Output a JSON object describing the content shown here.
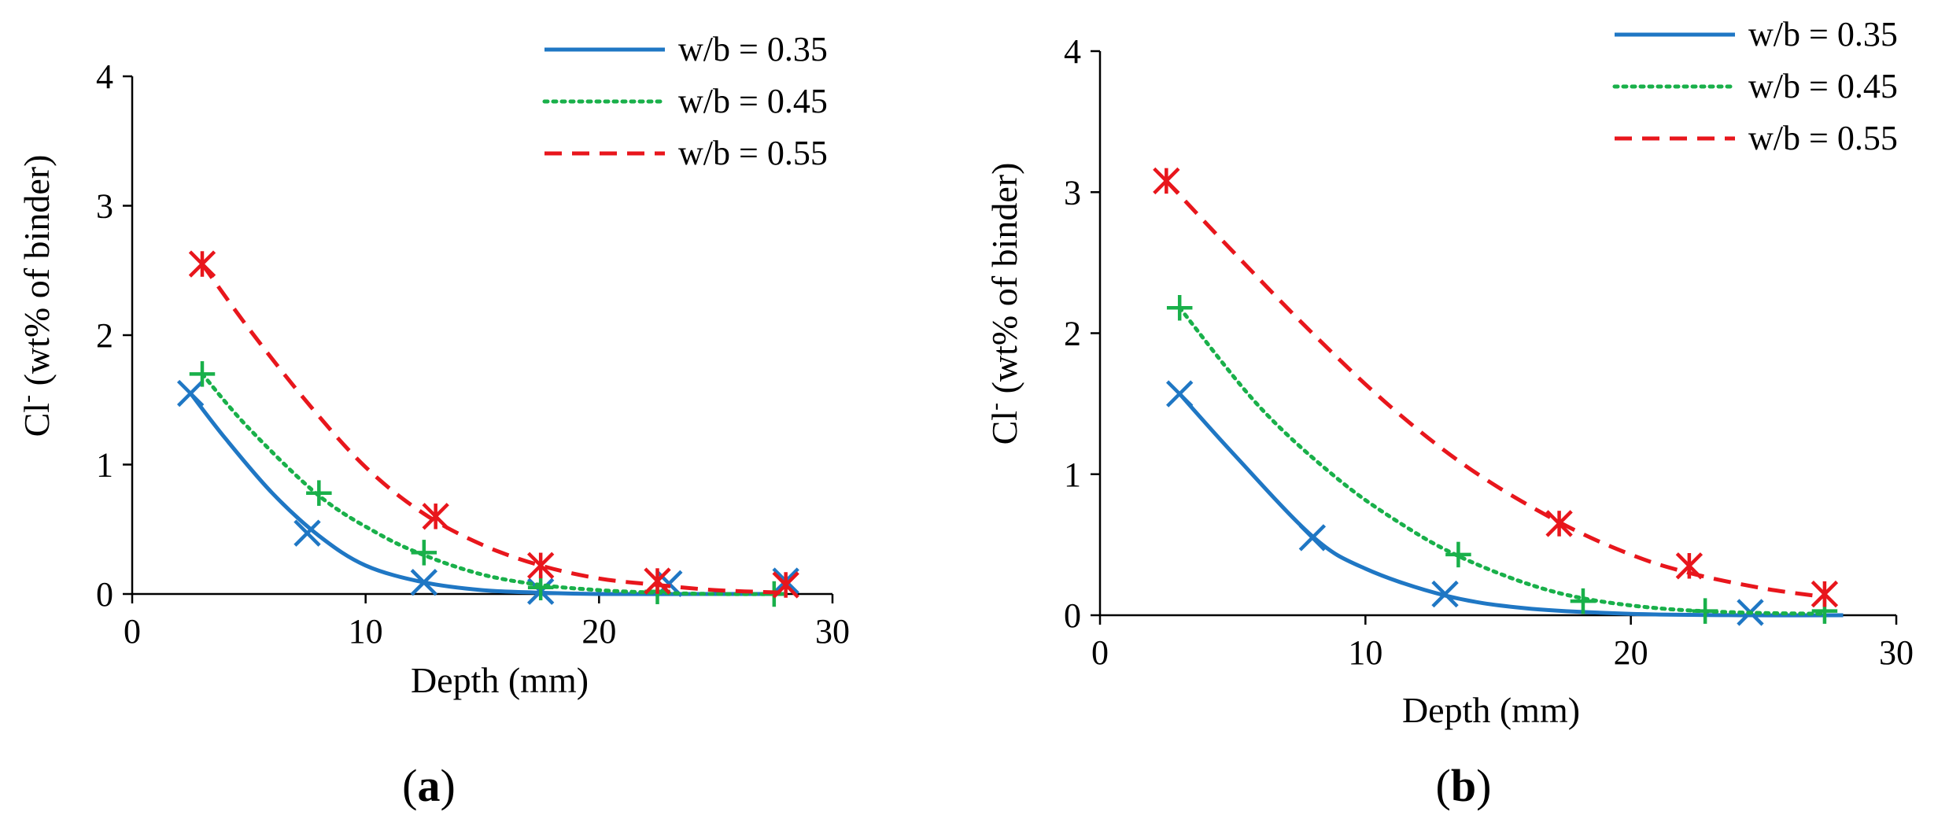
{
  "chart_data": [
    {
      "type": "line",
      "panel_label_prefix": "(",
      "panel_label_letter": "a",
      "panel_label_suffix": ")",
      "title": "",
      "xlabel": "Depth (mm)",
      "ylabel_main": "Cl",
      "ylabel_sup": "-",
      "ylabel_rest": " (wt% of binder)",
      "xlim": [
        0,
        30
      ],
      "ylim": [
        0,
        4
      ],
      "xticks": [
        "0",
        "10",
        "20",
        "30"
      ],
      "yticks": [
        "0",
        "1",
        "2",
        "3",
        "4"
      ],
      "grid": false,
      "legend_position": "top-right",
      "series": [
        {
          "name": "w/b = 0.35",
          "color": "#1f77c4",
          "line_style": "solid",
          "marker": "x",
          "points": [
            [
              2.5,
              1.55
            ],
            [
              7.5,
              0.47
            ],
            [
              12.5,
              0.09
            ],
            [
              17.5,
              0.02
            ],
            [
              23,
              0.08
            ],
            [
              28,
              0.1
            ]
          ],
          "fit": [
            [
              2.5,
              1.55
            ],
            [
              4,
              1.2
            ],
            [
              6,
              0.78
            ],
            [
              8,
              0.45
            ],
            [
              10,
              0.22
            ],
            [
              12.5,
              0.09
            ],
            [
              15,
              0.03
            ],
            [
              17.5,
              0.01
            ],
            [
              20,
              0.0
            ],
            [
              25,
              0.0
            ],
            [
              28,
              0.0
            ]
          ]
        },
        {
          "name": "w/b = 0.45",
          "color": "#19b04a",
          "line_style": "dotted",
          "marker": "+",
          "points": [
            [
              3,
              1.7
            ],
            [
              8,
              0.78
            ],
            [
              12.5,
              0.32
            ],
            [
              17.5,
              0.05
            ],
            [
              22.5,
              0.02
            ],
            [
              27.5,
              0.0
            ]
          ],
          "fit": [
            [
              3,
              1.7
            ],
            [
              5,
              1.28
            ],
            [
              8,
              0.76
            ],
            [
              10.5,
              0.47
            ],
            [
              12.5,
              0.3
            ],
            [
              15,
              0.15
            ],
            [
              17.5,
              0.07
            ],
            [
              20,
              0.03
            ],
            [
              22.5,
              0.01
            ],
            [
              25,
              0.0
            ],
            [
              28,
              0.0
            ]
          ]
        },
        {
          "name": "w/b = 0.55",
          "color": "#e8161c",
          "line_style": "dashed",
          "marker": "*",
          "points": [
            [
              3,
              2.55
            ],
            [
              13,
              0.6
            ],
            [
              17.5,
              0.22
            ],
            [
              22.5,
              0.1
            ],
            [
              28,
              0.07
            ]
          ],
          "fit": [
            [
              3,
              2.55
            ],
            [
              5,
              2.05
            ],
            [
              7.5,
              1.48
            ],
            [
              10,
              0.98
            ],
            [
              12.5,
              0.62
            ],
            [
              15,
              0.38
            ],
            [
              17.5,
              0.22
            ],
            [
              20,
              0.12
            ],
            [
              22.5,
              0.07
            ],
            [
              25,
              0.03
            ],
            [
              28,
              0.01
            ]
          ]
        }
      ]
    },
    {
      "type": "line",
      "panel_label_prefix": "(",
      "panel_label_letter": "b",
      "panel_label_suffix": ")",
      "title": "",
      "xlabel": "Depth (mm)",
      "ylabel_main": "Cl",
      "ylabel_sup": "-",
      "ylabel_rest": " (wt% of binder)",
      "xlim": [
        0,
        30
      ],
      "ylim": [
        0,
        4
      ],
      "xticks": [
        "0",
        "10",
        "20",
        "30"
      ],
      "yticks": [
        "0",
        "1",
        "2",
        "3",
        "4"
      ],
      "grid": false,
      "legend_position": "top-right",
      "series": [
        {
          "name": "w/b = 0.35",
          "color": "#1f77c4",
          "line_style": "solid",
          "marker": "x",
          "points": [
            [
              3,
              1.57
            ],
            [
              8,
              0.55
            ],
            [
              13,
              0.15
            ],
            [
              24.5,
              0.02
            ]
          ],
          "fit": [
            [
              3,
              1.57
            ],
            [
              5,
              1.15
            ],
            [
              8,
              0.56
            ],
            [
              10,
              0.33
            ],
            [
              13,
              0.14
            ],
            [
              16,
              0.05
            ],
            [
              20,
              0.01
            ],
            [
              24.5,
              0.0
            ],
            [
              28,
              0.0
            ]
          ]
        },
        {
          "name": "w/b = 0.45",
          "color": "#19b04a",
          "line_style": "dotted",
          "marker": "+",
          "points": [
            [
              3,
              2.18
            ],
            [
              13.5,
              0.43
            ],
            [
              18.2,
              0.1
            ],
            [
              22.8,
              0.03
            ],
            [
              27.3,
              0.03
            ]
          ],
          "fit": [
            [
              3,
              2.18
            ],
            [
              6,
              1.48
            ],
            [
              9,
              0.96
            ],
            [
              11.5,
              0.63
            ],
            [
              13.5,
              0.42
            ],
            [
              16,
              0.23
            ],
            [
              18.2,
              0.12
            ],
            [
              21,
              0.05
            ],
            [
              24,
              0.02
            ],
            [
              27.3,
              0.01
            ]
          ]
        },
        {
          "name": "w/b = 0.55",
          "color": "#e8161c",
          "line_style": "dashed",
          "marker": "*",
          "points": [
            [
              2.5,
              3.08
            ],
            [
              17.3,
              0.65
            ],
            [
              22.2,
              0.35
            ],
            [
              27.3,
              0.15
            ]
          ],
          "fit": [
            [
              2.5,
              3.08
            ],
            [
              5,
              2.58
            ],
            [
              8,
              2.0
            ],
            [
              11,
              1.47
            ],
            [
              14,
              1.03
            ],
            [
              17.3,
              0.66
            ],
            [
              20,
              0.43
            ],
            [
              22.2,
              0.3
            ],
            [
              25,
              0.19
            ],
            [
              27.3,
              0.13
            ]
          ]
        }
      ]
    }
  ]
}
